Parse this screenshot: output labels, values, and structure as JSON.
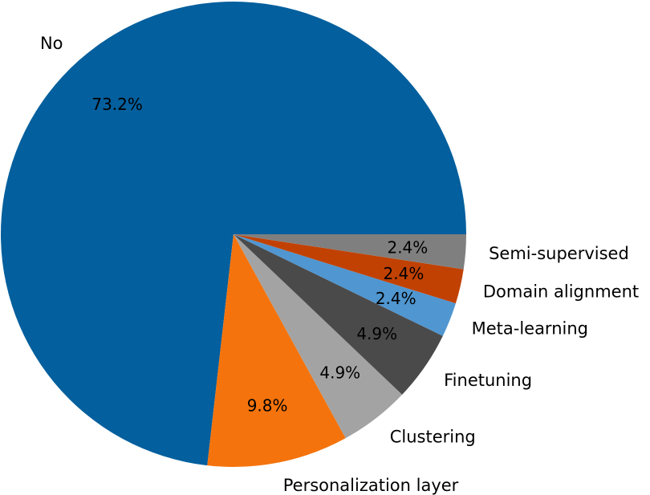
{
  "chart_data": {
    "type": "pie",
    "title": "",
    "slices": [
      {
        "label": "No",
        "value": 73.2,
        "pct_text": "73.2%",
        "color": "#035f9d"
      },
      {
        "label": "Personalization layer",
        "value": 9.8,
        "pct_text": "9.8%",
        "color": "#f5730c"
      },
      {
        "label": "Clustering",
        "value": 4.9,
        "pct_text": "4.9%",
        "color": "#a3a3a3"
      },
      {
        "label": "Finetuning",
        "value": 4.9,
        "pct_text": "4.9%",
        "color": "#4a4a4a"
      },
      {
        "label": "Meta-learning",
        "value": 2.4,
        "pct_text": "2.4%",
        "color": "#5096d0"
      },
      {
        "label": "Domain alignment",
        "value": 2.4,
        "pct_text": "2.4%",
        "color": "#c14103"
      },
      {
        "label": "Semi-supervised",
        "value": 2.4,
        "pct_text": "2.4%",
        "color": "#7f7f7f"
      }
    ]
  }
}
